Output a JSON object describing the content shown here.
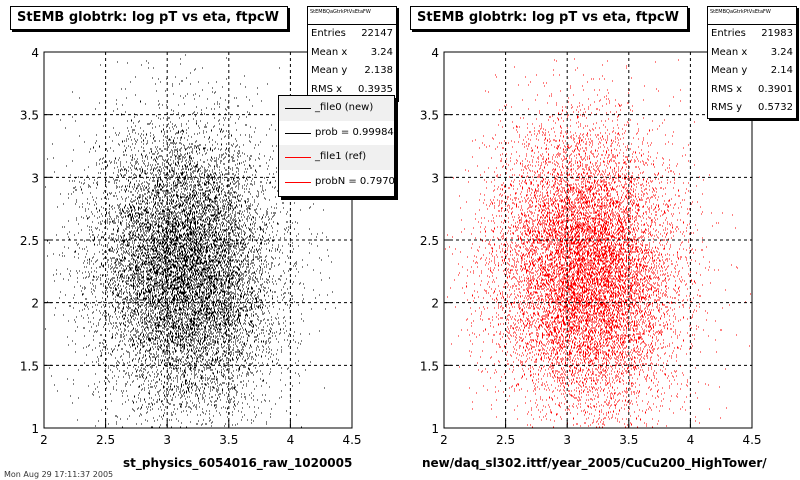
{
  "footer_text": "Mon Aug 29 17:11:37 2005",
  "chart_data": [
    {
      "type": "scatter",
      "title": "StEMB globtrk: log pT vs eta, ftpcW",
      "xlabel": "st_physics_6054016_raw_1020005",
      "ylabel": "",
      "xlim": [
        2,
        4.5
      ],
      "ylim": [
        1,
        4
      ],
      "xticks": [
        "2",
        "2.5",
        "3",
        "3.5",
        "4",
        "4.5"
      ],
      "yticks": [
        "1",
        "1.5",
        "2",
        "2.5",
        "3",
        "3.5",
        "4"
      ],
      "grid": true,
      "marker_color": "#000000",
      "distribution": {
        "center_x": 3.15,
        "center_y": 2.25,
        "entries": 22147
      },
      "stats": {
        "name": "StEMBQaGtrkPtVsEtaFW",
        "rows": [
          {
            "label": "Entries",
            "value": "22147"
          },
          {
            "label": "Mean x",
            "value": "3.24"
          },
          {
            "label": "Mean y",
            "value": "2.138"
          },
          {
            "label": "RMS x",
            "value": "0.3935"
          }
        ]
      },
      "legend": {
        "placement": "top-right",
        "entries": [
          {
            "label": "_file0 (new)",
            "color": "#000000"
          },
          {
            "label": "prob = 0.999843",
            "color": "#000000"
          },
          {
            "label": "_file1 (ref)",
            "color": "#ff0000"
          },
          {
            "label": "probN = 0.797038",
            "color": "#ff0000"
          }
        ]
      }
    },
    {
      "type": "scatter",
      "title": "StEMB globtrk: log pT vs eta, ftpcW",
      "xlabel": "new/daq_sl302.ittf/year_2005/CuCu200_HighTower/",
      "ylabel": "",
      "xlim": [
        2,
        4.5
      ],
      "ylim": [
        1,
        4
      ],
      "xticks": [
        "2",
        "2.5",
        "3",
        "3.5",
        "4",
        "4.5"
      ],
      "yticks": [
        "1",
        "1.5",
        "2",
        "2.5",
        "3",
        "3.5",
        "4"
      ],
      "grid": true,
      "marker_color": "#ff0000",
      "distribution": {
        "center_x": 3.15,
        "center_y": 2.25,
        "entries": 21983
      },
      "stats": {
        "name": "StEMBQaGtrkPtVsEtaFW",
        "rows": [
          {
            "label": "Entries",
            "value": "21983"
          },
          {
            "label": "Mean x",
            "value": "3.24"
          },
          {
            "label": "Mean y",
            "value": "2.14"
          },
          {
            "label": "RMS x",
            "value": "0.3901"
          },
          {
            "label": "RMS y",
            "value": "0.5732"
          }
        ]
      }
    }
  ]
}
